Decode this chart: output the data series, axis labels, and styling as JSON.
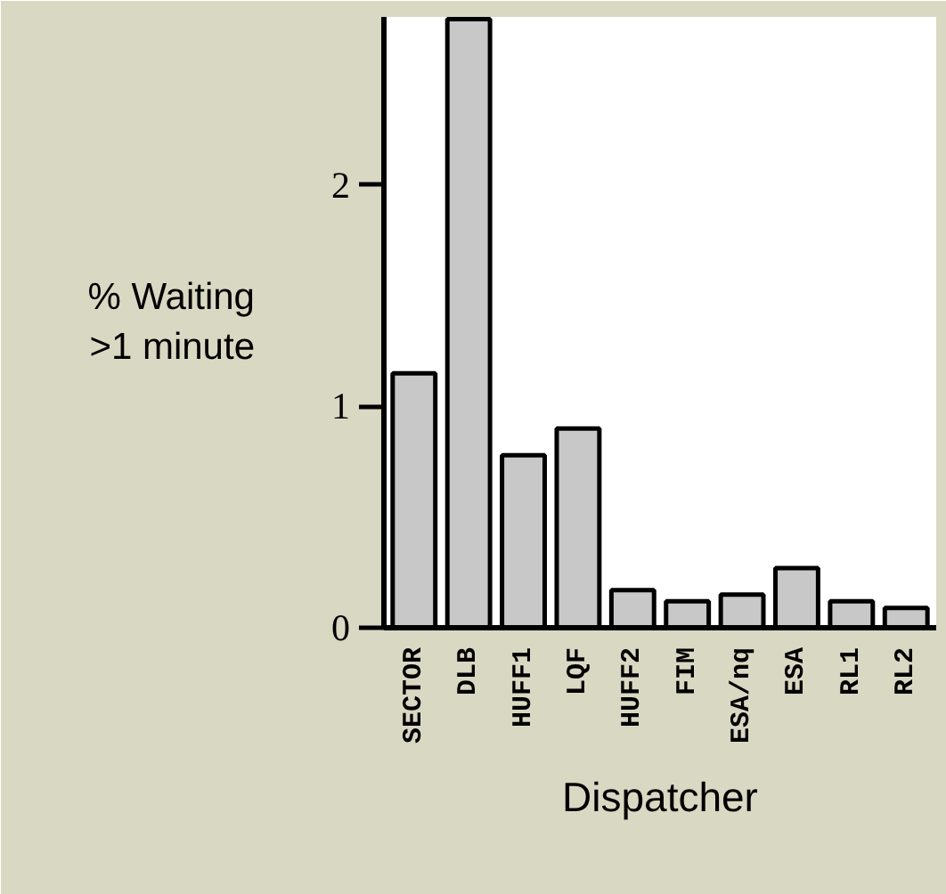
{
  "chart_data": {
    "type": "bar",
    "xlabel": "Dispatcher",
    "ylabel": "% Waiting\n>1 minute",
    "categories": [
      "SECTOR",
      "DLB",
      "HUFF1",
      "LQF",
      "HUFF2",
      "FIM",
      "ESA/nq",
      "ESA",
      "RL1",
      "RL2"
    ],
    "values": [
      1.15,
      2.75,
      0.78,
      0.9,
      0.17,
      0.12,
      0.15,
      0.27,
      0.12,
      0.09
    ],
    "color": "#c8c8c8",
    "ylim": [
      0,
      2.76
    ],
    "yticks": [
      0,
      1,
      2
    ],
    "grid": false
  }
}
